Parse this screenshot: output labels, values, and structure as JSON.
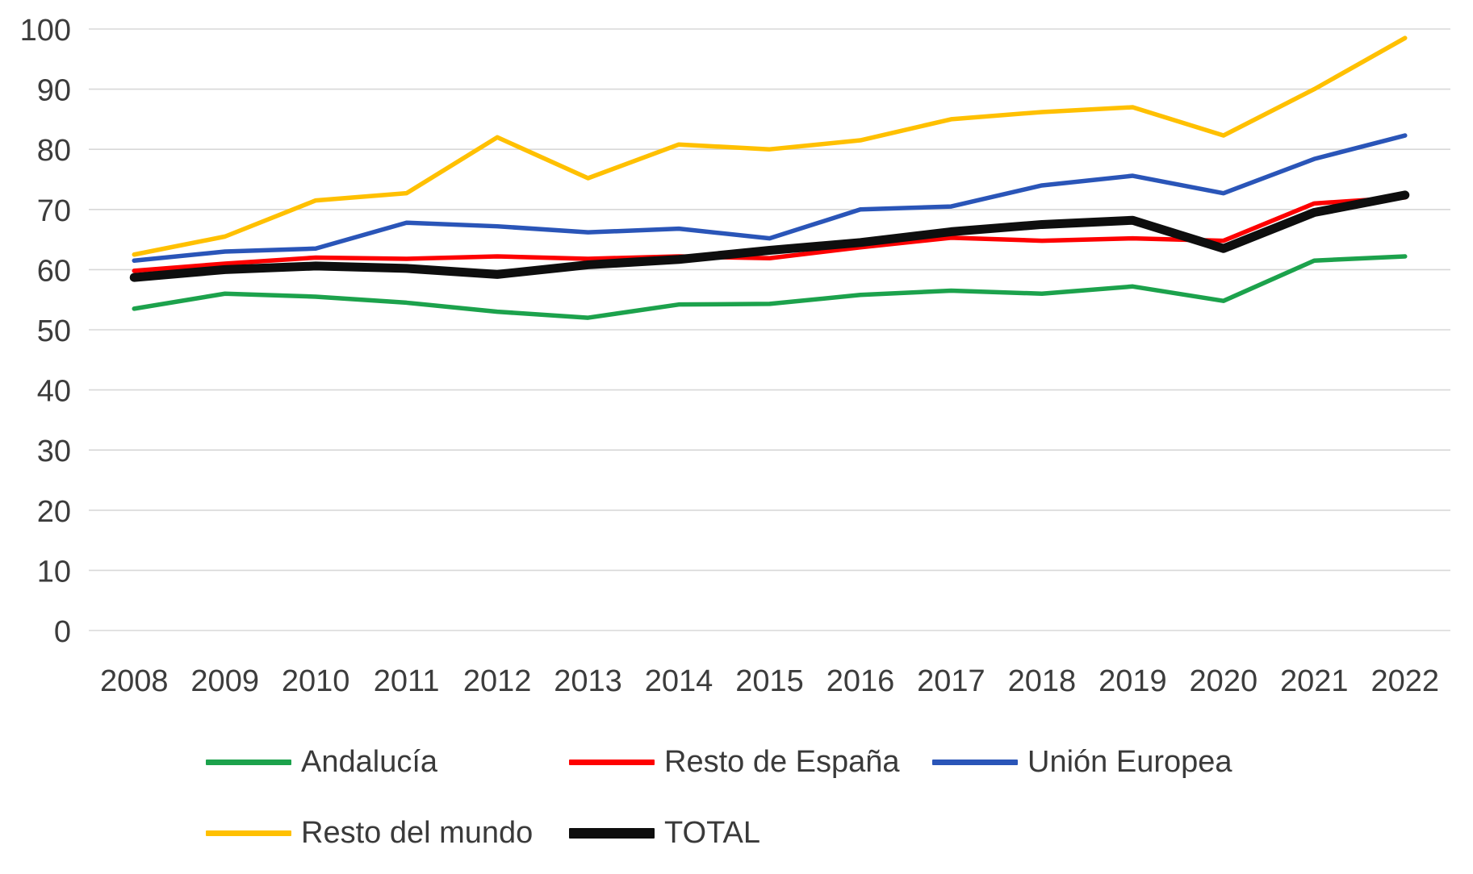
{
  "chart_data": {
    "type": "line",
    "title": "",
    "xlabel": "",
    "ylabel": "",
    "categories": [
      "2008",
      "2009",
      "2010",
      "2011",
      "2012",
      "2013",
      "2014",
      "2015",
      "2016",
      "2017",
      "2018",
      "2019",
      "2020",
      "2021",
      "2022"
    ],
    "series": [
      {
        "id": "andalucia",
        "name": "Andalucía",
        "color": "#1CA24C",
        "bold": false,
        "values": [
          53.5,
          56.0,
          55.5,
          54.5,
          53.0,
          52.0,
          54.2,
          54.3,
          55.8,
          56.5,
          56.0,
          57.2,
          54.8,
          61.5,
          62.2
        ]
      },
      {
        "id": "resto-de-espana",
        "name": "Resto de España",
        "color": "#FE0000",
        "bold": false,
        "values": [
          59.8,
          61.0,
          62.0,
          61.8,
          62.2,
          61.8,
          62.2,
          61.9,
          63.7,
          65.3,
          64.8,
          65.2,
          64.8,
          71.0,
          72.0
        ]
      },
      {
        "id": "union-europea",
        "name": "Unión Europea",
        "color": "#2A55B8",
        "bold": false,
        "values": [
          61.5,
          63.0,
          63.5,
          67.8,
          67.2,
          66.2,
          66.8,
          65.2,
          70.0,
          70.5,
          74.0,
          75.6,
          72.7,
          78.4,
          82.3
        ]
      },
      {
        "id": "resto-del-mundo",
        "name": "Resto del mundo",
        "color": "#FFC000",
        "bold": false,
        "values": [
          62.5,
          65.5,
          71.5,
          72.7,
          82.0,
          75.2,
          80.8,
          80.0,
          81.5,
          85.0,
          86.2,
          87.0,
          82.3,
          90.0,
          98.5
        ]
      },
      {
        "id": "total",
        "name": "TOTAL",
        "color": "#0E0E0E",
        "bold": true,
        "values": [
          58.7,
          60.0,
          60.6,
          60.2,
          59.2,
          60.8,
          61.7,
          63.2,
          64.5,
          66.3,
          67.5,
          68.2,
          63.5,
          69.5,
          72.4
        ]
      }
    ],
    "ylim": [
      0,
      100
    ],
    "yticks": [
      0,
      10,
      20,
      30,
      40,
      50,
      60,
      70,
      80,
      90,
      100
    ],
    "grid": "horizontal",
    "legend_position": "bottom"
  },
  "colors": {
    "gridline": "#D8D8D8",
    "tick_text": "#3C3C3C",
    "background": "#FFFFFF"
  }
}
